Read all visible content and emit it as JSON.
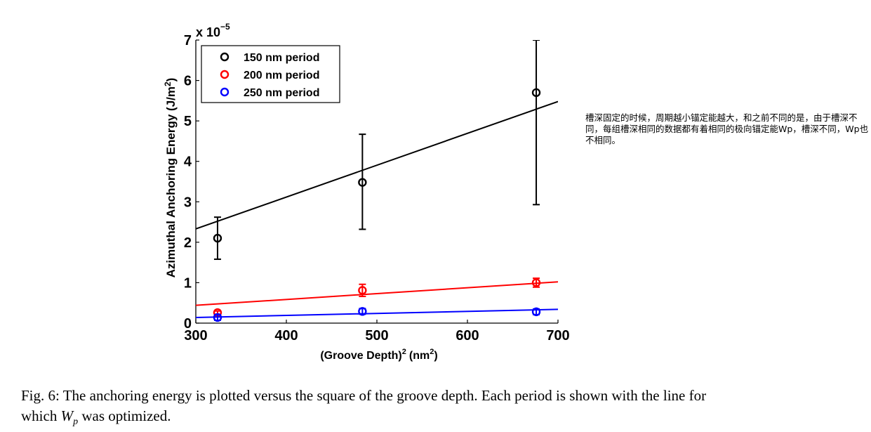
{
  "chart_data": {
    "type": "scatter",
    "xlabel_main": "(Groove Depth)",
    "xlabel_sup": "2",
    "xlabel_unit": "(nm",
    "xlabel_unit_sup": "2",
    "xlabel_close": ")",
    "ylabel_main": "Azimuthal Anchoring Energy (J/m",
    "ylabel_sup": "2",
    "ylabel_close": ")",
    "y_scale_base": "x 10",
    "y_scale_exp": "−5",
    "xlim": [
      300,
      700
    ],
    "ylim": [
      0,
      7
    ],
    "x_ticks": [
      300,
      400,
      500,
      600,
      700
    ],
    "y_ticks": [
      0,
      1,
      2,
      3,
      4,
      5,
      6,
      7
    ],
    "legend_position": "top-left",
    "series": [
      {
        "name": "150 nm period",
        "color": "#000000",
        "points": [
          {
            "x": 324,
            "y": 2.1,
            "err_low": 1.58,
            "err_high": 2.62
          },
          {
            "x": 484,
            "y": 3.48,
            "err_low": 2.32,
            "err_high": 4.67
          },
          {
            "x": 676,
            "y": 5.7,
            "err_low": 2.93,
            "err_high": 7.0
          }
        ],
        "fit": {
          "x": [
            300,
            700
          ],
          "y": [
            2.33,
            5.48
          ]
        }
      },
      {
        "name": "200 nm period",
        "color": "#ff0000",
        "points": [
          {
            "x": 324,
            "y": 0.26,
            "err_low": 0.22,
            "err_high": 0.3
          },
          {
            "x": 484,
            "y": 0.81,
            "err_low": 0.66,
            "err_high": 0.96
          },
          {
            "x": 676,
            "y": 1.0,
            "err_low": 0.89,
            "err_high": 1.11
          }
        ],
        "fit": {
          "x": [
            300,
            700
          ],
          "y": [
            0.44,
            1.02
          ]
        }
      },
      {
        "name": "250 nm period",
        "color": "#0000ff",
        "points": [
          {
            "x": 324,
            "y": 0.14,
            "err_low": 0.07,
            "err_high": 0.21
          },
          {
            "x": 484,
            "y": 0.29,
            "err_low": 0.22,
            "err_high": 0.36
          },
          {
            "x": 676,
            "y": 0.28,
            "err_low": 0.21,
            "err_high": 0.35
          }
        ],
        "fit": {
          "x": [
            300,
            700
          ],
          "y": [
            0.14,
            0.34
          ]
        }
      }
    ]
  },
  "note": {
    "text": "槽深固定的时候，周期越小锚定能越大，和之前不同的是，由于槽深不同，每组槽深相同的数据都有着相同的极向锚定能Wp，槽深不同，Wp也不相同。"
  },
  "caption": {
    "part1": "Fig. 6: The anchoring energy is plotted versus the square of the groove depth. Each period is shown with the line for which ",
    "wp_base": "W",
    "wp_sub": "p",
    "part2": " was optimized."
  }
}
